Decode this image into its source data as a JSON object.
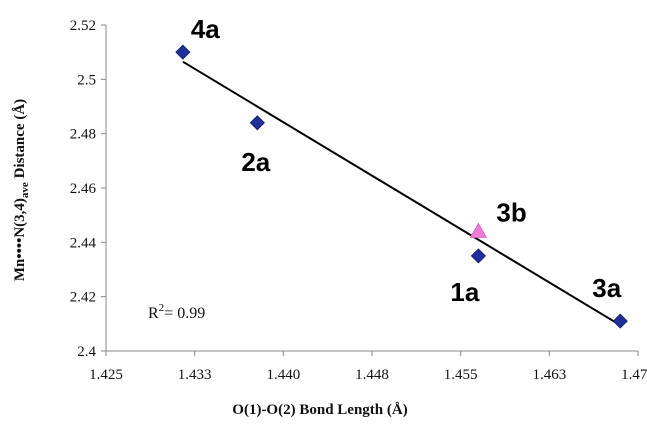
{
  "chart_data": {
    "type": "scatter",
    "xlabel": "O(1)-O(2) Bond Length (Å)",
    "ylabel": {
      "prefix": "Mn••••N(3,4)",
      "subscript": "ave",
      "suffix": " Distance (Å)"
    },
    "xlim": [
      1.425,
      1.47
    ],
    "ylim": [
      2.4,
      2.52
    ],
    "x_ticks": [
      1.425,
      1.4325,
      1.44,
      1.4475,
      1.455,
      1.4625,
      1.47
    ],
    "x_tick_labels": [
      "1.425",
      "1.433",
      "1.440",
      "1.448",
      "1.455",
      "1.463",
      "1.470"
    ],
    "y_ticks": [
      2.4,
      2.42,
      2.44,
      2.46,
      2.48,
      2.5,
      2.52
    ],
    "y_tick_labels": [
      "2.4",
      "2.42",
      "2.44",
      "2.46",
      "2.48",
      "2.5",
      "2.52"
    ],
    "grid": false,
    "series": [
      {
        "marker": "diamond",
        "color": "#1f2f9e",
        "points": [
          {
            "label": "4a",
            "x": 1.4315,
            "y": 2.51
          },
          {
            "label": "2a",
            "x": 1.4378,
            "y": 2.484
          },
          {
            "label": "1a",
            "x": 1.4565,
            "y": 2.435
          },
          {
            "label": "3a",
            "x": 1.4685,
            "y": 2.411
          }
        ]
      },
      {
        "marker": "triangle",
        "color": "#f07ad6",
        "points": [
          {
            "label": "3b",
            "x": 1.4565,
            "y": 2.444
          }
        ]
      }
    ],
    "trendline": {
      "x": [
        1.4315,
        1.4685
      ],
      "y": [
        2.5065,
        2.4095
      ],
      "color": "#000000"
    },
    "annotation": {
      "base": "R",
      "sup": "2",
      "rest": "= 0.99"
    }
  }
}
